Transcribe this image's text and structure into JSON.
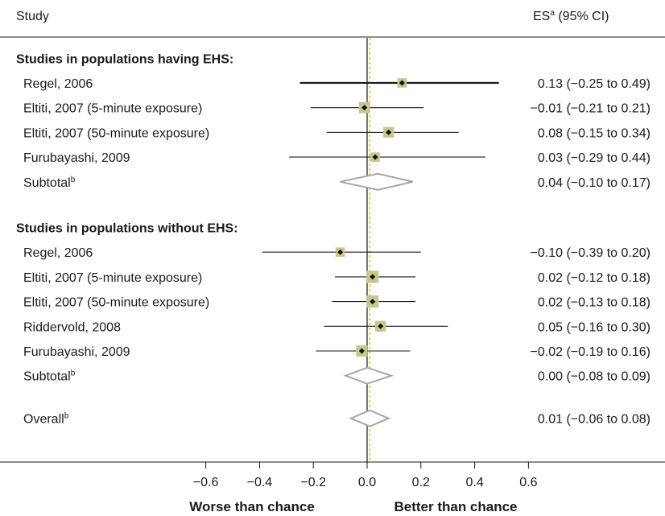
{
  "header": {
    "study_label": "Study",
    "es_label": "ES",
    "es_sup": "a",
    "es_suffix": " (95% CI)"
  },
  "colors": {
    "marker": "#c9c68d",
    "ci_line": "#1a1a1a",
    "diamond": "#a6a6a6",
    "null_line": "#1a1a1a",
    "pooled_line": "#c8b400"
  },
  "chart_data": {
    "type": "forest",
    "x_ticks": [
      -0.6,
      -0.4,
      -0.2,
      0.0,
      0.2,
      0.4,
      0.6
    ],
    "x_tick_labels": [
      "−0.6",
      "−0.4",
      "−0.2",
      "0.0",
      "0.2",
      "0.4",
      "0.6"
    ],
    "xlim": [
      -0.8,
      0.7
    ],
    "null_value": 0.0,
    "overall_estimate_line": 0.01,
    "direction_labels": {
      "left": "Worse than chance",
      "right": "Better than chance"
    },
    "groups": [
      {
        "title": "Studies in populations having EHS:",
        "studies": [
          {
            "label": "Regel, 2006",
            "es": 0.13,
            "lo": -0.25,
            "hi": 0.49,
            "text": "0.13 (−0.25 to 0.49)",
            "weight": 0.6
          },
          {
            "label": "Eltiti, 2007 (5-minute exposure)",
            "es": -0.01,
            "lo": -0.21,
            "hi": 0.21,
            "text": "−0.01 (−0.21 to 0.21)",
            "weight": 1.0
          },
          {
            "label": "Eltiti, 2007 (50-minute exposure)",
            "es": 0.08,
            "lo": -0.15,
            "hi": 0.34,
            "text": "0.08 (−0.15 to 0.34)",
            "weight": 0.9
          },
          {
            "label": "Furubayashi, 2009",
            "es": 0.03,
            "lo": -0.29,
            "hi": 0.44,
            "text": "0.03 (−0.29 to 0.44)",
            "weight": 0.6
          }
        ],
        "subtotal": {
          "label": "Subtotal",
          "sup": "b",
          "es": 0.04,
          "lo": -0.1,
          "hi": 0.17,
          "text": "0.04 (−0.10 to 0.17)"
        }
      },
      {
        "title": "Studies in populations without EHS:",
        "studies": [
          {
            "label": "Regel, 2006",
            "es": -0.1,
            "lo": -0.39,
            "hi": 0.2,
            "text": "−0.10 (−0.39 to 0.20)",
            "weight": 0.6
          },
          {
            "label": "Eltiti, 2007 (5-minute exposure)",
            "es": 0.02,
            "lo": -0.12,
            "hi": 0.18,
            "text": "0.02 (−0.12 to 0.18)",
            "weight": 1.2
          },
          {
            "label": "Eltiti, 2007 (50-minute exposure)",
            "es": 0.02,
            "lo": -0.13,
            "hi": 0.18,
            "text": "0.02 (−0.13 to 0.18)",
            "weight": 1.2
          },
          {
            "label": "Riddervold, 2008",
            "es": 0.05,
            "lo": -0.16,
            "hi": 0.3,
            "text": "0.05 (−0.16 to 0.30)",
            "weight": 0.9
          },
          {
            "label": "Furubayashi, 2009",
            "es": -0.02,
            "lo": -0.19,
            "hi": 0.16,
            "text": "−0.02 (−0.19 to 0.16)",
            "weight": 1.0
          }
        ],
        "subtotal": {
          "label": "Subtotal",
          "sup": "b",
          "es": 0.0,
          "lo": -0.08,
          "hi": 0.09,
          "text": "0.00 (−0.08 to 0.09)"
        }
      }
    ],
    "overall": {
      "label": "Overall",
      "sup": "b",
      "es": 0.01,
      "lo": -0.06,
      "hi": 0.08,
      "text": "0.01 (−0.06 to 0.08)"
    }
  }
}
